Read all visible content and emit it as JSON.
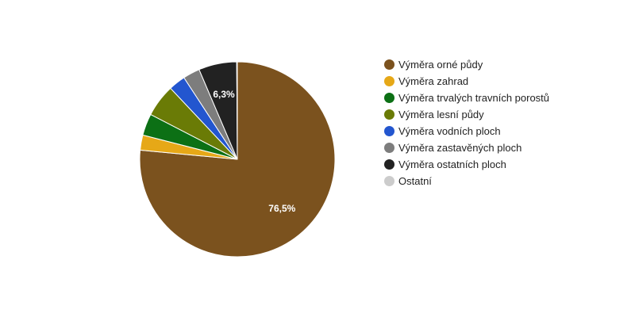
{
  "chart_data": {
    "type": "pie",
    "series": [
      {
        "name": "Výměra orné půdy",
        "value": 76.5,
        "color": "#7b521e"
      },
      {
        "name": "Výměra zahrad",
        "value": 2.5,
        "color": "#e6a817"
      },
      {
        "name": "Výměra trvalých travních porostů",
        "value": 3.6,
        "color": "#0c7015"
      },
      {
        "name": "Výměra lesní půdy",
        "value": 5.4,
        "color": "#6a7b06"
      },
      {
        "name": "Výměra vodních ploch",
        "value": 2.8,
        "color": "#2356cf"
      },
      {
        "name": "Výměra zastavěných ploch",
        "value": 2.8,
        "color": "#7d7d7d"
      },
      {
        "name": "Výměra ostatních ploch",
        "value": 6.3,
        "color": "#222222"
      },
      {
        "name": "Ostatní",
        "value": 0.1,
        "color": "#cccccc"
      }
    ],
    "data_labels": [
      {
        "series": "Výměra orné půdy",
        "text": "76,5%"
      },
      {
        "series": "Výměra ostatních ploch",
        "text": "6,3%"
      }
    ],
    "legend_position": "right"
  }
}
